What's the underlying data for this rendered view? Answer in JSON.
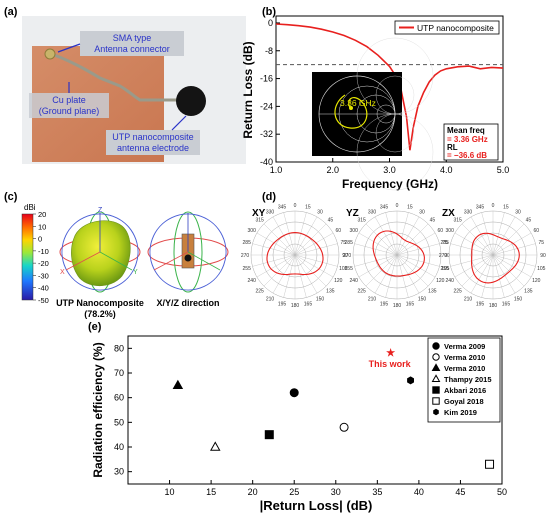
{
  "panels": {
    "a": {
      "label": "(a)",
      "annotations": {
        "sma_line1": "SMA type",
        "sma_line2": "Antenna connector",
        "cu_line1": "Cu plate",
        "cu_line2": "(Ground plane)",
        "utp_line1": "UTP nanocomposite",
        "utp_line2": "antenna electrode"
      }
    },
    "b": {
      "label": "(b)",
      "legend": "UTP nanocomposite",
      "smith_label": "3.36 GHz",
      "info_title": "Mean freq",
      "info_freq": "= 3.36 GHz",
      "info_rl_label": "RL",
      "info_rl": "= −36.6 dB",
      "xlabel": "Frequency (GHz)",
      "ylabel": "Return Loss (dB)",
      "xticks": [
        "1.0",
        "2.0",
        "3.0",
        "4.0",
        "5.0"
      ],
      "yticks": [
        "0",
        "-8",
        "-16",
        "-24",
        "-32",
        "-40"
      ]
    },
    "c": {
      "label": "(c)",
      "colorbar_unit": "dBi",
      "colorbar_ticks": [
        "20",
        "10",
        "0",
        "-10",
        "-20",
        "-30",
        "-40",
        "-50"
      ],
      "caption1_line1": "UTP Nanocomposite",
      "caption1_line2": "(78.2%)",
      "caption2": "X/Y/Z direction"
    },
    "d": {
      "label": "(d)",
      "plane_titles": [
        "XY",
        "YZ",
        "ZX"
      ],
      "angle_labels": [
        "0",
        "15",
        "30",
        "45",
        "60",
        "75",
        "90",
        "105",
        "120",
        "135",
        "150",
        "165",
        "180",
        "195",
        "210",
        "225",
        "240",
        "255",
        "270",
        "285",
        "300",
        "315",
        "330",
        "345"
      ]
    },
    "e": {
      "label": "(e)"
    }
  },
  "chart_data": [
    {
      "type": "line",
      "series": [
        {
          "name": "UTP nanocomposite",
          "x": [
            1.0,
            1.2,
            1.4,
            1.6,
            1.8,
            2.0,
            2.2,
            2.4,
            2.6,
            2.8,
            3.0,
            3.1,
            3.2,
            3.3,
            3.36,
            3.42,
            3.5,
            3.6,
            3.7,
            3.8,
            3.9,
            4.0,
            4.2,
            4.4,
            4.6,
            4.8,
            5.0
          ],
          "y": [
            -0.3,
            -0.5,
            -0.8,
            -1.2,
            -1.8,
            -2.6,
            -3.6,
            -5.0,
            -6.8,
            -9.3,
            -12.5,
            -15.0,
            -19.0,
            -27.0,
            -36.6,
            -30.0,
            -24.0,
            -20.0,
            -17.0,
            -15.0,
            -13.8,
            -13.2,
            -12.6,
            -12.4,
            -13.2,
            -12.8,
            -13.0
          ]
        }
      ],
      "reference_line_y": -12,
      "xlabel": "Frequency (GHz)",
      "ylabel": "Return Loss (dB)",
      "xlim": [
        1.0,
        5.0
      ],
      "ylim": [
        -40,
        2
      ],
      "legend_position": "top-right"
    },
    {
      "type": "scatter",
      "xlabel": "|Return Loss| (dB)",
      "ylabel": "Radiation efficiency (%)",
      "xlim": [
        5,
        50
      ],
      "ylim": [
        25,
        85
      ],
      "xticks": [
        10,
        15,
        20,
        25,
        30,
        35,
        40,
        45,
        50
      ],
      "yticks": [
        30,
        40,
        50,
        60,
        70,
        80
      ],
      "legend_position": "right",
      "points": [
        {
          "name": "Verma 2009",
          "marker": "circle-filled",
          "x": 25,
          "y": 62
        },
        {
          "name": "Verma 2010",
          "marker": "circle-open",
          "x": 31,
          "y": 48
        },
        {
          "name": "Verma 2010",
          "marker": "triangle-filled",
          "x": 11,
          "y": 65
        },
        {
          "name": "Thampy 2015",
          "marker": "triangle-open",
          "x": 15.5,
          "y": 40
        },
        {
          "name": "Akbari 2016",
          "marker": "square-filled",
          "x": 22,
          "y": 45
        },
        {
          "name": "Goyal 2018",
          "marker": "square-open",
          "x": 48.5,
          "y": 33
        },
        {
          "name": "Kim 2019",
          "marker": "hexagon-filled",
          "x": 39,
          "y": 67
        },
        {
          "name": "This work",
          "marker": "star-red",
          "x": 36.6,
          "y": 78.2
        }
      ],
      "highlight_label": "This work",
      "highlight_color": "#e8201e"
    }
  ],
  "colors": {
    "line_red": "#e8201e",
    "photo_copper": "#d4875f",
    "annotation_blue": "#2a33c8",
    "annotation_box": "#c9cdd3"
  }
}
